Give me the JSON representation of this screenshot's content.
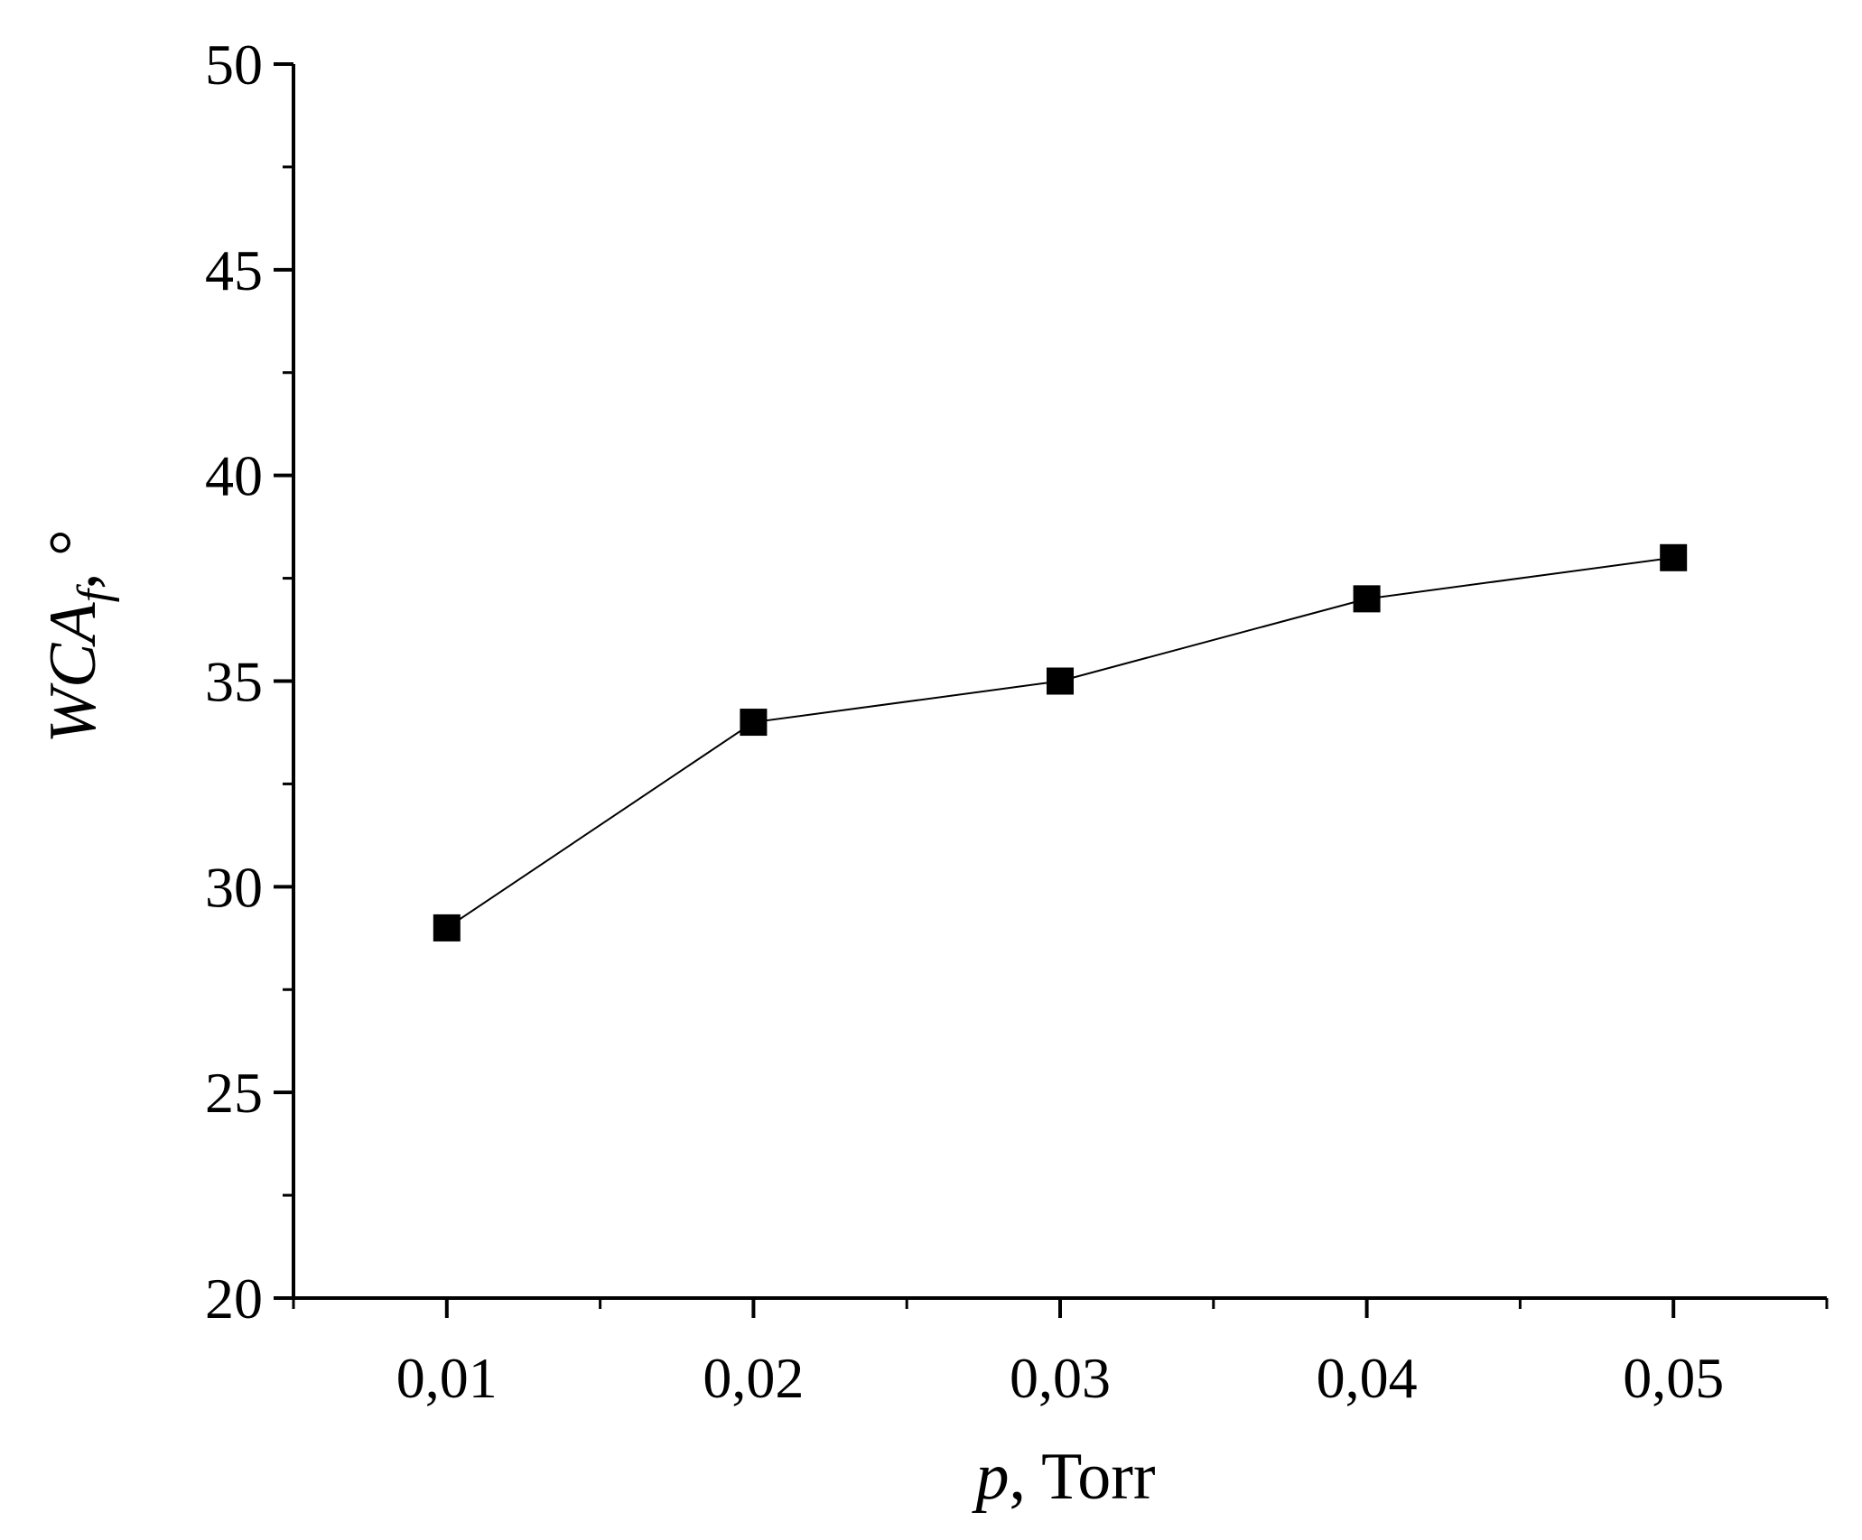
{
  "chart_data": {
    "type": "line",
    "title": "",
    "x": [
      0.01,
      0.02,
      0.03,
      0.04,
      0.05
    ],
    "series": [
      {
        "values": [
          29,
          34,
          35,
          37,
          38
        ]
      }
    ],
    "xlabel": {
      "symbol": "p",
      "rest": ", Torr"
    },
    "ylabel": {
      "main": "WCA",
      "subscript": "f",
      "rest": ", °"
    },
    "xlim": [
      0.005,
      0.055
    ],
    "ylim": [
      20,
      50
    ],
    "x_ticks": [
      "0,01",
      "0,02",
      "0,03",
      "0,04",
      "0,05"
    ],
    "y_ticks": [
      "20",
      "25",
      "30",
      "35",
      "40",
      "45",
      "50"
    ],
    "grid": false,
    "marker": "filled-square",
    "color": "#000000"
  }
}
